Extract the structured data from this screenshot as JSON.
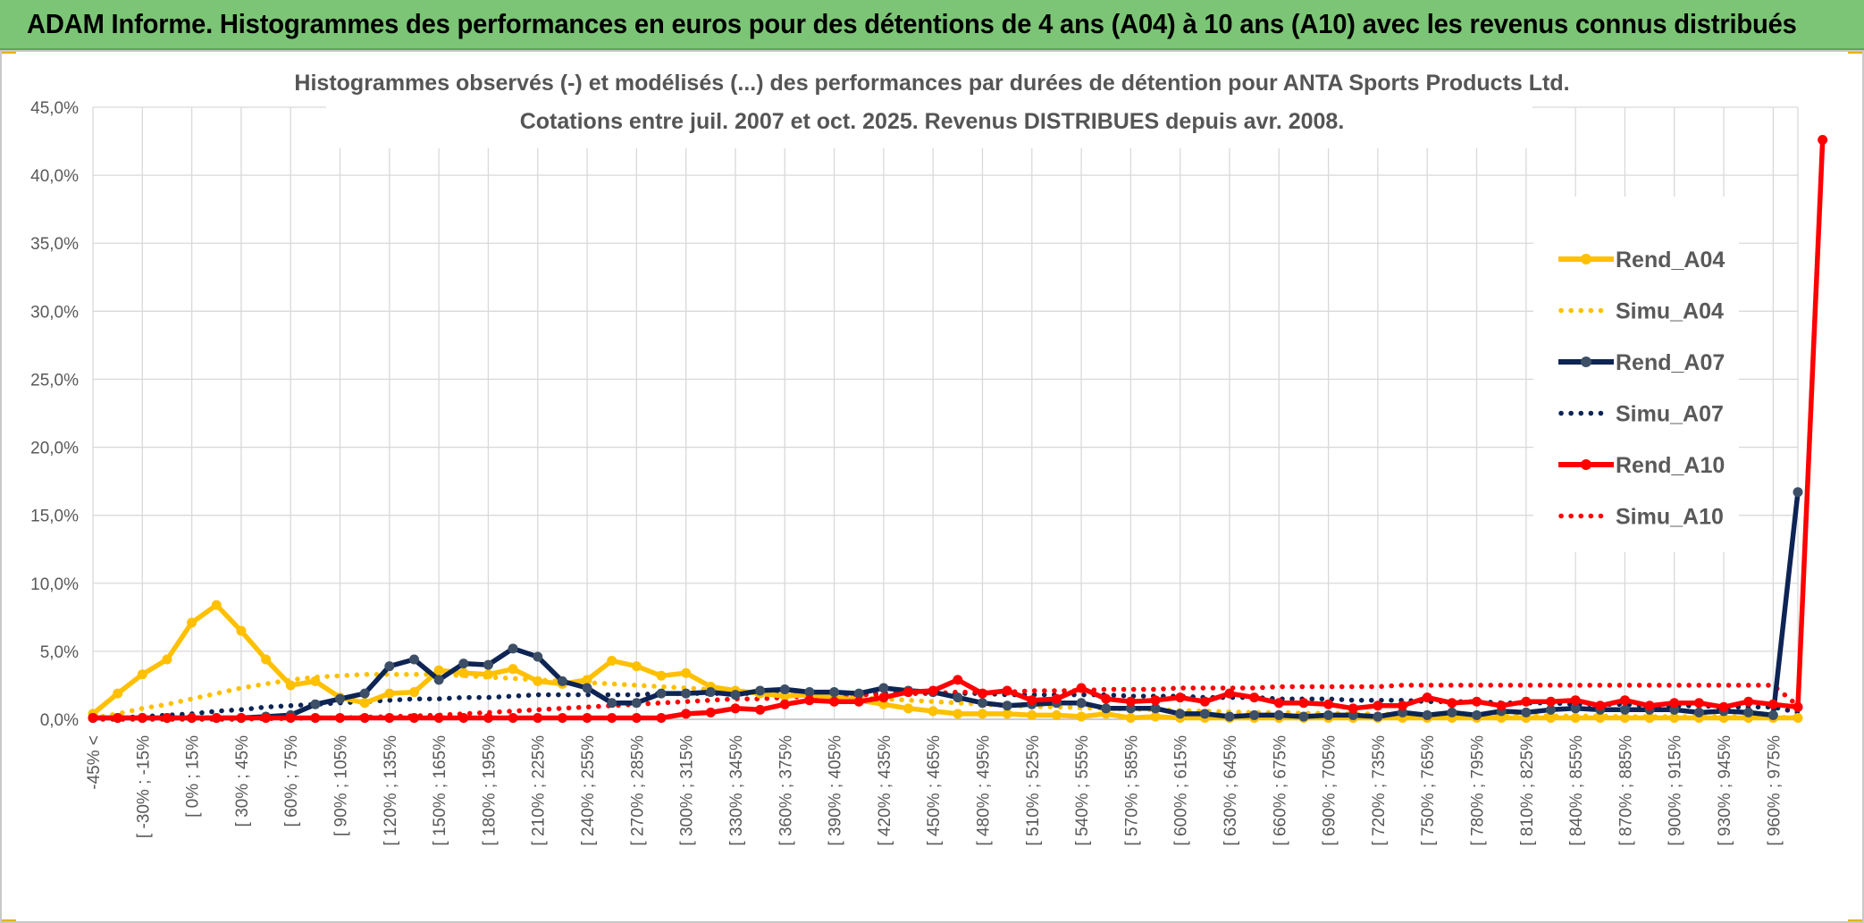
{
  "banner": {
    "title": "ADAM Informe. Histogrammes des performances en euros pour des détentions de 4 ans (A04) à 10 ans (A10) avec les revenus connus distribués"
  },
  "colors": {
    "banner_bg": "#7cc576",
    "A04": "#ffc000",
    "A07": "#0d2454",
    "A07_marker": "#3d4f66",
    "A10": "#ff0000",
    "grid": "#d9d9d9",
    "text": "#595959"
  },
  "chart_data": {
    "type": "line",
    "title": "Histogrammes observés (-) et modélisés (...) des performances par durées de détention pour ANTA Sports Products Ltd.",
    "subtitle": "Cotations entre juil. 2007 et oct. 2025. Revenus DISTRIBUES depuis avr. 2008.",
    "y_ticks": [
      "0,0%",
      "5,0%",
      "10,0%",
      "15,0%",
      "20,0%",
      "25,0%",
      "30,0%",
      "35,0%",
      "40,0%",
      "45,0%"
    ],
    "ylim": [
      0,
      45
    ],
    "grid": true,
    "legend_position": "right",
    "category_labels": [
      "-45% <",
      "[ -30% ; -15%",
      "[ 0% ; 15%",
      "[ 30% ; 45%",
      "[ 60% ; 75%",
      "[ 90% ; 105%",
      "[ 120% ; 135%",
      "[ 150% ; 165%",
      "[ 180% ; 195%",
      "[ 210% ; 225%",
      "[ 240% ; 255%",
      "[ 270% ; 285%",
      "[ 300% ; 315%",
      "[ 330% ; 345%",
      "[ 360% ; 375%",
      "[ 390% ; 405%",
      "[ 420% ; 435%",
      "[ 450% ; 465%",
      "[ 480% ; 495%",
      "[ 510% ; 525%",
      "[ 540% ; 555%",
      "[ 570% ; 585%",
      "[ 600% ; 615%",
      "[ 630% ; 645%",
      "[ 660% ; 675%",
      "[ 690% ; 705%",
      "[ 720% ; 735%",
      "[ 750% ; 765%",
      "[ 780% ; 795%",
      "[ 810% ; 825%",
      "[ 840% ; 855%",
      "[ 870% ; 885%",
      "[ 900% ; 915%",
      "[ 930% ; 945%",
      "[ 960% ; 975%"
    ],
    "series": [
      {
        "name": "Rend_A04",
        "style": "solid",
        "marker": true,
        "values": [
          0.4,
          1.9,
          3.3,
          4.4,
          7.1,
          8.4,
          6.5,
          4.4,
          2.5,
          2.8,
          1.6,
          1.2,
          1.9,
          2.0,
          3.6,
          3.4,
          3.3,
          3.7,
          2.8,
          2.6,
          2.9,
          4.3,
          3.9,
          3.2,
          3.4,
          2.4,
          2.1,
          1.9,
          1.7,
          1.8,
          1.6,
          1.4,
          1.1,
          0.8,
          0.6,
          0.4,
          0.4,
          0.4,
          0.3,
          0.3,
          0.2,
          0.4,
          0.1,
          0.2,
          0.1,
          0.1,
          0.1,
          0.1,
          0.1,
          0.1,
          0.1,
          0.1,
          0.1,
          0.1,
          0.1,
          0.1,
          0.1,
          0.1,
          0.1,
          0.1,
          0.1,
          0.1,
          0.1,
          0.1,
          0.1,
          0.1,
          0.1,
          0.1,
          0.1,
          0.1
        ]
      },
      {
        "name": "Simu_A04",
        "style": "dotted",
        "marker": false,
        "values": [
          0.1,
          0.4,
          0.8,
          1.1,
          1.5,
          1.9,
          2.3,
          2.6,
          2.9,
          3.1,
          3.2,
          3.3,
          3.3,
          3.3,
          3.3,
          3.2,
          3.1,
          3.0,
          2.9,
          2.8,
          2.7,
          2.6,
          2.5,
          2.4,
          2.3,
          2.2,
          2.1,
          2.0,
          1.9,
          1.8,
          1.7,
          1.6,
          1.5,
          1.4,
          1.3,
          1.2,
          1.1,
          1.0,
          0.95,
          0.9,
          0.85,
          0.8,
          0.75,
          0.7,
          0.65,
          0.6,
          0.55,
          0.5,
          0.5,
          0.45,
          0.45,
          0.4,
          0.4,
          0.35,
          0.35,
          0.3,
          0.3,
          0.3,
          0.3,
          0.25,
          0.25,
          0.25,
          0.2,
          0.2,
          0.2,
          0.2,
          0.2,
          0.2,
          0.15,
          0.15
        ]
      },
      {
        "name": "Rend_A07",
        "style": "solid",
        "marker": true,
        "values": [
          0.1,
          0.1,
          0.1,
          0.1,
          0.1,
          0.1,
          0.1,
          0.2,
          0.3,
          1.1,
          1.5,
          1.9,
          3.9,
          4.4,
          2.9,
          4.1,
          4.0,
          5.2,
          4.6,
          2.8,
          2.3,
          1.2,
          1.2,
          1.9,
          1.9,
          2.0,
          1.8,
          2.1,
          2.2,
          2.0,
          2.0,
          1.9,
          2.3,
          2.1,
          2.0,
          1.6,
          1.2,
          1.0,
          1.1,
          1.2,
          1.2,
          0.8,
          0.8,
          0.8,
          0.4,
          0.4,
          0.2,
          0.3,
          0.3,
          0.2,
          0.3,
          0.3,
          0.2,
          0.5,
          0.3,
          0.5,
          0.3,
          0.6,
          0.5,
          0.7,
          0.8,
          0.7,
          0.7,
          0.7,
          0.7,
          0.5,
          0.6,
          0.5,
          0.3,
          16.7
        ]
      },
      {
        "name": "Simu_A07",
        "style": "dotted",
        "marker": false,
        "values": [
          0.05,
          0.1,
          0.2,
          0.3,
          0.4,
          0.6,
          0.7,
          0.9,
          1.0,
          1.1,
          1.2,
          1.3,
          1.4,
          1.5,
          1.5,
          1.6,
          1.6,
          1.7,
          1.8,
          1.8,
          1.8,
          1.8,
          1.8,
          1.9,
          1.9,
          1.9,
          1.9,
          1.9,
          1.9,
          1.9,
          1.9,
          1.9,
          1.9,
          1.9,
          1.9,
          1.9,
          1.9,
          1.8,
          1.8,
          1.8,
          1.8,
          1.8,
          1.7,
          1.7,
          1.7,
          1.6,
          1.6,
          1.6,
          1.5,
          1.5,
          1.5,
          1.4,
          1.4,
          1.4,
          1.3,
          1.3,
          1.3,
          1.2,
          1.2,
          1.2,
          1.1,
          1.1,
          1.1,
          1.0,
          1.0,
          1.0,
          0.9,
          0.9,
          0.9,
          0.5
        ]
      },
      {
        "name": "Rend_A10",
        "style": "solid",
        "marker": true,
        "values": [
          0.1,
          0.1,
          0.1,
          0.1,
          0.1,
          0.1,
          0.1,
          0.1,
          0.1,
          0.1,
          0.1,
          0.1,
          0.1,
          0.1,
          0.1,
          0.1,
          0.1,
          0.1,
          0.1,
          0.1,
          0.1,
          0.1,
          0.1,
          0.1,
          0.4,
          0.5,
          0.8,
          0.7,
          1.1,
          1.4,
          1.3,
          1.3,
          1.6,
          2.0,
          2.1,
          2.9,
          1.9,
          2.1,
          1.4,
          1.5,
          2.3,
          1.5,
          1.3,
          1.4,
          1.6,
          1.3,
          1.9,
          1.6,
          1.2,
          1.2,
          1.1,
          0.8,
          1.0,
          1.0,
          1.6,
          1.2,
          1.3,
          1.0,
          1.3,
          1.3,
          1.4,
          1.0,
          1.4,
          1.0,
          1.2,
          1.2,
          0.9,
          1.3,
          1.1,
          0.9,
          42.6
        ]
      },
      {
        "name": "Simu_A10",
        "style": "dotted",
        "marker": false,
        "values": [
          0.0,
          0.0,
          0.0,
          0.0,
          0.0,
          0.0,
          0.0,
          0.05,
          0.05,
          0.1,
          0.1,
          0.15,
          0.2,
          0.25,
          0.3,
          0.4,
          0.5,
          0.6,
          0.7,
          0.8,
          0.9,
          1.0,
          1.1,
          1.2,
          1.3,
          1.4,
          1.5,
          1.5,
          1.6,
          1.7,
          1.7,
          1.8,
          1.8,
          1.9,
          1.9,
          2.0,
          2.0,
          2.0,
          2.1,
          2.1,
          2.1,
          2.2,
          2.2,
          2.2,
          2.3,
          2.3,
          2.3,
          2.3,
          2.4,
          2.4,
          2.4,
          2.4,
          2.4,
          2.5,
          2.5,
          2.5,
          2.5,
          2.5,
          2.5,
          2.5,
          2.5,
          2.5,
          2.5,
          2.5,
          2.5,
          2.5,
          2.5,
          2.5,
          2.5,
          1.0
        ]
      }
    ]
  }
}
